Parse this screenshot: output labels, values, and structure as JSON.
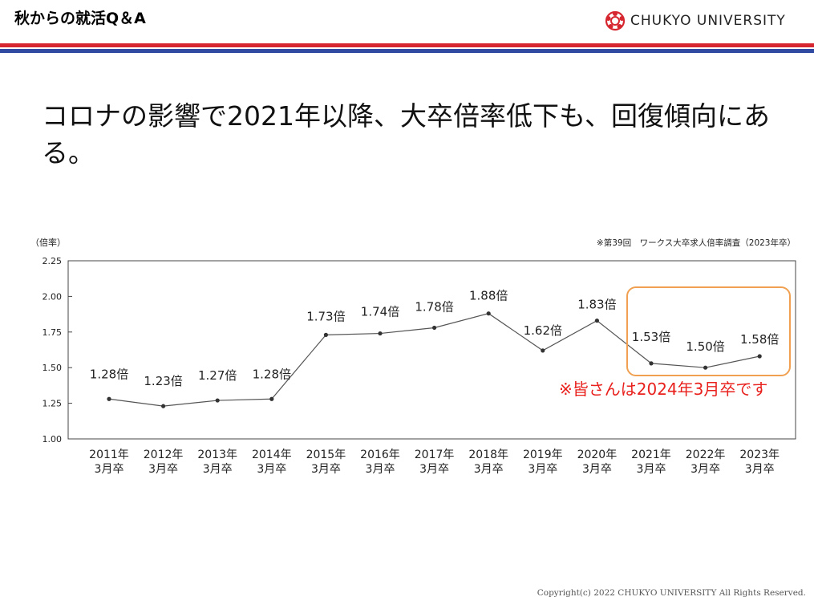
{
  "header": {
    "title": "秋からの就活Q＆A",
    "logo_text": "CHUKYO UNIVERSITY"
  },
  "headline": "コロナの影響で2021年以降、大卒倍率低下も、回復傾向にある。",
  "note": "※皆さんは2024年3月卒です",
  "copyright": "Copyright(c) 2022 CHUKYO UNIVERSITY All Rights Reserved.",
  "colors": {
    "red": "#d6262f",
    "blue": "#2f4aa0",
    "note": "#e8211d",
    "highlight": "#f0a050"
  },
  "chart_data": {
    "type": "line",
    "source": "※第39回　ワークス大卒求人倍率調査（2023年卒）",
    "ylabel": "（倍率）",
    "ylim": [
      1.0,
      2.25
    ],
    "yticks": [
      "1.00",
      "1.25",
      "1.50",
      "1.75",
      "2.00",
      "2.25"
    ],
    "categories": [
      [
        "2011年",
        "3月卒"
      ],
      [
        "2012年",
        "3月卒"
      ],
      [
        "2013年",
        "3月卒"
      ],
      [
        "2014年",
        "3月卒"
      ],
      [
        "2015年",
        "3月卒"
      ],
      [
        "2016年",
        "3月卒"
      ],
      [
        "2017年",
        "3月卒"
      ],
      [
        "2018年",
        "3月卒"
      ],
      [
        "2019年",
        "3月卒"
      ],
      [
        "2020年",
        "3月卒"
      ],
      [
        "2021年",
        "3月卒"
      ],
      [
        "2022年",
        "3月卒"
      ],
      [
        "2023年",
        "3月卒"
      ]
    ],
    "values": [
      1.28,
      1.23,
      1.27,
      1.28,
      1.73,
      1.74,
      1.78,
      1.88,
      1.62,
      1.83,
      1.53,
      1.5,
      1.58
    ],
    "labels": [
      "1.28倍",
      "1.23倍",
      "1.27倍",
      "1.28倍",
      "1.73倍",
      "1.74倍",
      "1.78倍",
      "1.88倍",
      "1.62倍",
      "1.83倍",
      "1.53倍",
      "1.50倍",
      "1.58倍"
    ],
    "grid": false
  }
}
